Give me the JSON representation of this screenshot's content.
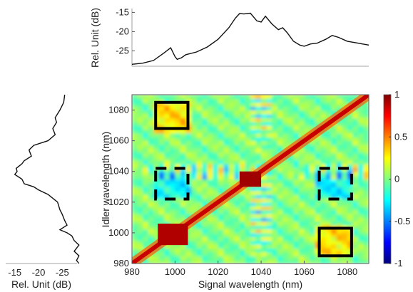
{
  "chart_data": [
    {
      "type": "heatmap",
      "title": "",
      "xlabel": "Signal wavelength (nm)",
      "ylabel": "Idler wavelength (nm)",
      "xlim": [
        980,
        1090
      ],
      "ylim": [
        980,
        1090
      ],
      "x_ticks": [
        "980",
        "1000",
        "1020",
        "1040",
        "1060",
        "1080"
      ],
      "y_ticks": [
        "980",
        "1000",
        "1020",
        "1040",
        "1060",
        "1080"
      ],
      "colorbar": {
        "range": [
          -1,
          1
        ],
        "ticks": [
          "1",
          "0.5",
          "0",
          "-0.5",
          "-1"
        ],
        "colormap": "jet"
      },
      "annotations": [
        {
          "shape": "square",
          "style": "solid",
          "x": [
            991,
            1006
          ],
          "y": [
            1068,
            1085
          ]
        },
        {
          "shape": "square",
          "style": "dashed",
          "x": [
            991,
            1006
          ],
          "y": [
            1022,
            1042
          ]
        },
        {
          "shape": "square",
          "style": "dashed",
          "x": [
            1067,
            1082
          ],
          "y": [
            1022,
            1042
          ]
        },
        {
          "shape": "square",
          "style": "solid",
          "x": [
            1067,
            1082
          ],
          "y": [
            985,
            1003
          ]
        }
      ]
    },
    {
      "type": "line",
      "ylabel": "Rel. Unit (dB)",
      "x_shared_with": "Signal wavelength (nm)",
      "y_ticks": [
        "-15",
        "-20",
        "-25"
      ],
      "ylim": [
        -29,
        -14
      ],
      "x": [
        980,
        985,
        990,
        995,
        998,
        1000,
        1001,
        1003,
        1005,
        1010,
        1015,
        1020,
        1025,
        1028,
        1030,
        1032,
        1035,
        1038,
        1040,
        1042,
        1045,
        1048,
        1050,
        1052,
        1055,
        1058,
        1060,
        1063,
        1066,
        1070,
        1073,
        1076,
        1080,
        1085,
        1090
      ],
      "values": [
        -28.5,
        -28.2,
        -27.5,
        -25.5,
        -24.2,
        -26.5,
        -27.2,
        -26.8,
        -26.0,
        -25.3,
        -24.0,
        -22.0,
        -19.0,
        -16.5,
        -15.3,
        -15.4,
        -15.2,
        -17.2,
        -17.5,
        -16.0,
        -18.0,
        -19.5,
        -19.0,
        -20.2,
        -22.5,
        -23.5,
        -23.8,
        -23.2,
        -23.0,
        -22.0,
        -21.0,
        -21.5,
        -22.5,
        -23.0,
        -23.5
      ]
    },
    {
      "type": "line",
      "xlabel": "Rel. Unit (dB)",
      "orientation": "vertical",
      "y_shared_with": "Idler wavelength (nm)",
      "x_ticks": [
        "-15",
        "-20",
        "-25"
      ],
      "xlim": [
        -29,
        -14
      ],
      "y": [
        1090,
        1085,
        1080,
        1075,
        1072,
        1068,
        1064,
        1060,
        1057,
        1054,
        1050,
        1047,
        1045,
        1042,
        1040,
        1038,
        1035,
        1032,
        1030,
        1028,
        1025,
        1020,
        1015,
        1012,
        1008,
        1005,
        1002,
        1000,
        998,
        995,
        992,
        988,
        985,
        982,
        980
      ],
      "values": [
        -25.5,
        -25.3,
        -24.5,
        -23.5,
        -23.8,
        -23.0,
        -23.5,
        -22.0,
        -19.0,
        -18.0,
        -18.5,
        -17.0,
        -16.5,
        -15.3,
        -15.5,
        -15.0,
        -16.5,
        -17.0,
        -19.0,
        -20.0,
        -22.0,
        -24.0,
        -24.5,
        -25.0,
        -25.5,
        -26.0,
        -24.5,
        -26.0,
        -27.0,
        -27.5,
        -28.5,
        -27.5,
        -28.5,
        -28.0,
        -28.5
      ]
    }
  ]
}
